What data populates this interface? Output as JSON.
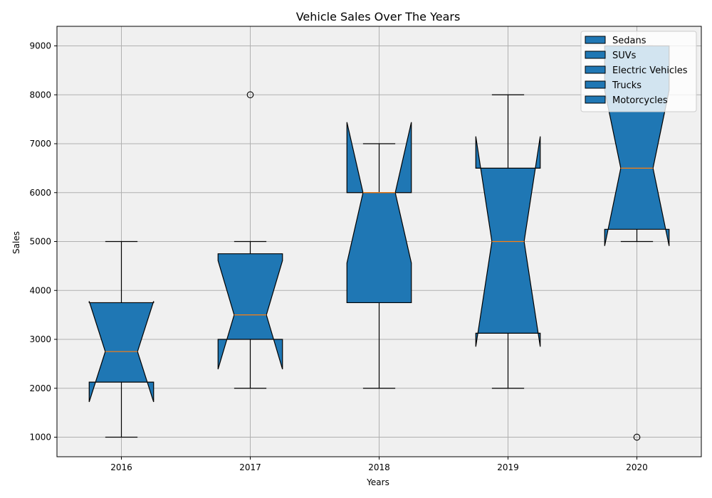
{
  "chart_data": {
    "type": "box",
    "title": "Vehicle Sales Over The Years",
    "xlabel": "Years",
    "ylabel": "Sales",
    "categories": [
      "2016",
      "2017",
      "2018",
      "2019",
      "2020"
    ],
    "ylim": [
      600,
      9400
    ],
    "yticks": [
      1000,
      2000,
      3000,
      4000,
      5000,
      6000,
      7000,
      8000,
      9000
    ],
    "grid": true,
    "notched": true,
    "legend": {
      "placement": "top-right",
      "entries": [
        "Sedans",
        "SUVs",
        "Electric Vehicles",
        "Trucks",
        "Motorcycles"
      ]
    },
    "boxes": [
      {
        "category": "2016",
        "whisker_low": 1000,
        "q1": 2125,
        "median": 2750,
        "q3": 3750,
        "whisker_high": 5000,
        "notch_low": 1720,
        "notch_high": 3780,
        "outliers": []
      },
      {
        "category": "2017",
        "whisker_low": 2000,
        "q1": 3000,
        "median": 3500,
        "q3": 4750,
        "whisker_high": 5000,
        "notch_low": 2390,
        "notch_high": 4610,
        "outliers": [
          8000
        ]
      },
      {
        "category": "2018",
        "whisker_low": 2000,
        "q1": 3750,
        "median": 6000,
        "q3": 6000,
        "whisker_high": 7000,
        "notch_low": 4560,
        "notch_high": 7440,
        "outliers": []
      },
      {
        "category": "2019",
        "whisker_low": 2000,
        "q1": 3125,
        "median": 5000,
        "q3": 6500,
        "whisker_high": 8000,
        "notch_low": 2850,
        "notch_high": 7150,
        "outliers": []
      },
      {
        "category": "2020",
        "whisker_low": 5000,
        "q1": 5250,
        "median": 6500,
        "q3": 9000,
        "whisker_high": 9000,
        "notch_low": 4910,
        "notch_high": 8090,
        "outliers": [
          1000
        ]
      }
    ],
    "colors": {
      "box_fill": "#1f77b4",
      "median": "#ff7f0e",
      "edge": "#000000",
      "plot_bg": "#f0f0f0",
      "grid": "#b0b0b0"
    }
  }
}
